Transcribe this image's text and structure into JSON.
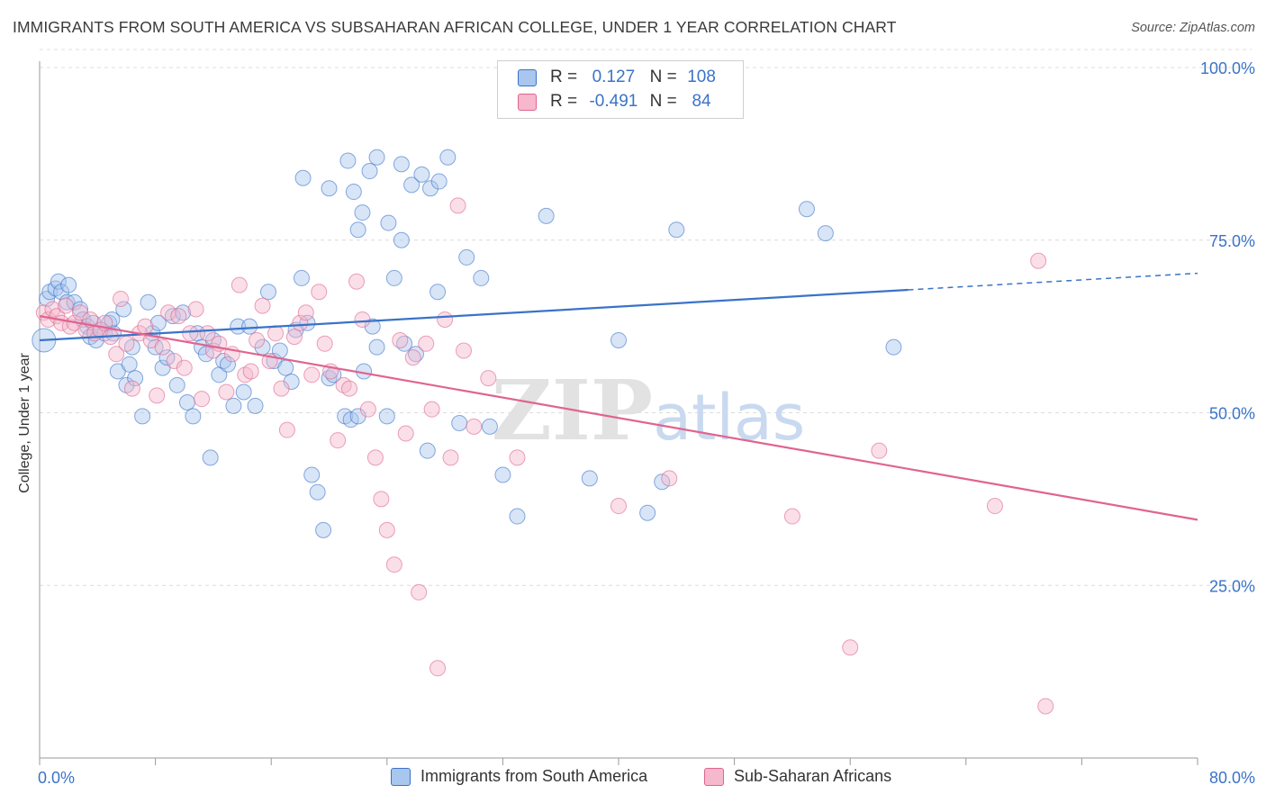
{
  "header": {
    "title": "IMMIGRANTS FROM SOUTH AMERICA VS SUBSAHARAN AFRICAN COLLEGE, UNDER 1 YEAR CORRELATION CHART",
    "source": "Source: ZipAtlas.com"
  },
  "legend": {
    "rows": [
      {
        "r_label": "R =",
        "r_value": "0.127",
        "n_label": "N =",
        "n_value": "108",
        "color": "#a9c6ee"
      },
      {
        "r_label": "R =",
        "r_value": "-0.491",
        "n_label": "N =",
        "n_value": "84",
        "color": "#f5b8cc"
      }
    ]
  },
  "bottom_legend": [
    {
      "label": "Immigrants from South America",
      "color": "#a9c6ee"
    },
    {
      "label": "Sub-Saharan Africans",
      "color": "#f5b8cc"
    }
  ],
  "colors": {
    "blue": "#3a73c9",
    "blue_fill": "#a9c6ee",
    "pink": "#e0648f",
    "pink_fill": "#f5b8cc",
    "tick_label": "#3a73c9",
    "grid": "#dcdcdc"
  },
  "chart_data": {
    "type": "scatter",
    "title": "IMMIGRANTS FROM SOUTH AMERICA VS SUBSAHARAN AFRICAN COLLEGE, UNDER 1 YEAR CORRELATION CHART",
    "xlabel": "",
    "ylabel": "College, Under 1 year",
    "xlim": [
      0,
      80
    ],
    "ylim": [
      0,
      100
    ],
    "x_tick_labels": [
      "0.0%",
      "80.0%"
    ],
    "y_tick_labels": [
      "25.0%",
      "50.0%",
      "75.0%",
      "100.0%"
    ],
    "y_ticks": [
      25,
      50,
      75,
      100
    ],
    "grid": true,
    "legend_position": "top-center",
    "watermark": "ZIPatlas",
    "series": [
      {
        "name": "Immigrants from South America",
        "color": "#3a73c9",
        "trend": {
          "x": [
            0,
            60
          ],
          "y": [
            60.5,
            67.8
          ],
          "dashed_to": [
            80,
            70.2
          ]
        },
        "points": [
          [
            0.3,
            60.5
          ],
          [
            0.5,
            66.5
          ],
          [
            0.7,
            67.5
          ],
          [
            1.1,
            68.0
          ],
          [
            1.3,
            69.0
          ],
          [
            1.5,
            67.5
          ],
          [
            1.9,
            66.0
          ],
          [
            2.0,
            68.5
          ],
          [
            2.4,
            66.0
          ],
          [
            2.8,
            65.0
          ],
          [
            3.0,
            63.5
          ],
          [
            3.3,
            62.5
          ],
          [
            3.5,
            61.0
          ],
          [
            3.7,
            63.0
          ],
          [
            3.9,
            60.5
          ],
          [
            4.2,
            62.0
          ],
          [
            4.5,
            61.5
          ],
          [
            4.8,
            63.0
          ],
          [
            5.0,
            63.5
          ],
          [
            5.1,
            61.5
          ],
          [
            5.4,
            56.0
          ],
          [
            5.8,
            65.0
          ],
          [
            6.0,
            54.0
          ],
          [
            6.2,
            57.0
          ],
          [
            6.4,
            59.5
          ],
          [
            6.6,
            55.0
          ],
          [
            7.1,
            49.5
          ],
          [
            7.5,
            66.0
          ],
          [
            7.8,
            61.5
          ],
          [
            8.0,
            59.5
          ],
          [
            8.2,
            63.0
          ],
          [
            8.5,
            56.5
          ],
          [
            8.8,
            58.0
          ],
          [
            9.2,
            64.0
          ],
          [
            9.5,
            54.0
          ],
          [
            9.9,
            64.5
          ],
          [
            10.2,
            51.5
          ],
          [
            10.6,
            49.5
          ],
          [
            10.9,
            61.5
          ],
          [
            11.2,
            59.5
          ],
          [
            11.5,
            58.5
          ],
          [
            11.8,
            43.5
          ],
          [
            12.0,
            60.5
          ],
          [
            12.4,
            55.5
          ],
          [
            12.7,
            57.5
          ],
          [
            13.0,
            57.0
          ],
          [
            13.4,
            51.0
          ],
          [
            13.7,
            62.5
          ],
          [
            14.1,
            53.0
          ],
          [
            14.5,
            62.5
          ],
          [
            14.9,
            51.0
          ],
          [
            15.4,
            59.5
          ],
          [
            15.8,
            67.5
          ],
          [
            16.2,
            57.5
          ],
          [
            16.6,
            59.0
          ],
          [
            17.0,
            56.5
          ],
          [
            17.4,
            54.5
          ],
          [
            17.7,
            62.0
          ],
          [
            18.1,
            69.5
          ],
          [
            18.5,
            63.0
          ],
          [
            18.8,
            41.0
          ],
          [
            19.2,
            38.5
          ],
          [
            19.6,
            33.0
          ],
          [
            20.0,
            55.0
          ],
          [
            20.3,
            55.5
          ],
          [
            21.1,
            49.5
          ],
          [
            21.5,
            49.0
          ],
          [
            22.0,
            49.5
          ],
          [
            22.4,
            56.0
          ],
          [
            23.0,
            62.5
          ],
          [
            23.3,
            59.5
          ],
          [
            24.0,
            49.5
          ],
          [
            24.5,
            69.5
          ],
          [
            25.2,
            60.0
          ],
          [
            26.0,
            58.5
          ],
          [
            26.8,
            44.5
          ],
          [
            27.5,
            67.5
          ],
          [
            29.0,
            48.5
          ],
          [
            30.5,
            69.5
          ],
          [
            31.1,
            48.0
          ],
          [
            32.0,
            41.0
          ],
          [
            33.0,
            35.0
          ],
          [
            18.2,
            84.0
          ],
          [
            20.0,
            82.5
          ],
          [
            21.3,
            86.5
          ],
          [
            21.7,
            82.0
          ],
          [
            22.0,
            76.5
          ],
          [
            22.3,
            79.0
          ],
          [
            22.8,
            85.0
          ],
          [
            23.3,
            87.0
          ],
          [
            24.1,
            77.5
          ],
          [
            25.0,
            86.0
          ],
          [
            25.7,
            83.0
          ],
          [
            26.4,
            84.5
          ],
          [
            27.0,
            82.5
          ],
          [
            27.6,
            83.5
          ],
          [
            28.2,
            87.0
          ],
          [
            29.5,
            72.5
          ],
          [
            35.0,
            78.5
          ],
          [
            38.0,
            40.5
          ],
          [
            43.0,
            40.0
          ],
          [
            53.0,
            79.5
          ],
          [
            54.3,
            76.0
          ],
          [
            59.0,
            59.5
          ],
          [
            42.0,
            35.5
          ],
          [
            44.0,
            76.5
          ],
          [
            25.0,
            75.0
          ],
          [
            40.0,
            60.5
          ]
        ]
      },
      {
        "name": "Sub-Saharan Africans",
        "color": "#e0648f",
        "trend": {
          "x": [
            0,
            80
          ],
          "y": [
            64.0,
            34.5
          ]
        },
        "points": [
          [
            0.3,
            64.5
          ],
          [
            0.6,
            63.5
          ],
          [
            0.9,
            65.0
          ],
          [
            1.2,
            64.0
          ],
          [
            1.5,
            63.0
          ],
          [
            1.8,
            65.5
          ],
          [
            2.1,
            62.5
          ],
          [
            2.4,
            63.0
          ],
          [
            2.8,
            64.5
          ],
          [
            3.2,
            62.0
          ],
          [
            3.5,
            63.5
          ],
          [
            3.8,
            61.5
          ],
          [
            4.2,
            62.0
          ],
          [
            4.5,
            63.0
          ],
          [
            4.9,
            61.0
          ],
          [
            5.3,
            58.5
          ],
          [
            5.6,
            66.5
          ],
          [
            6.0,
            60.0
          ],
          [
            6.4,
            53.5
          ],
          [
            6.9,
            61.5
          ],
          [
            7.3,
            62.5
          ],
          [
            7.7,
            60.5
          ],
          [
            8.1,
            52.5
          ],
          [
            8.5,
            59.5
          ],
          [
            8.9,
            64.5
          ],
          [
            9.3,
            57.5
          ],
          [
            9.6,
            64.0
          ],
          [
            10.0,
            56.5
          ],
          [
            10.4,
            61.5
          ],
          [
            10.8,
            65.0
          ],
          [
            11.2,
            52.0
          ],
          [
            11.6,
            61.5
          ],
          [
            12.0,
            59.0
          ],
          [
            12.4,
            60.0
          ],
          [
            12.9,
            53.0
          ],
          [
            13.3,
            58.5
          ],
          [
            13.8,
            68.5
          ],
          [
            14.2,
            55.5
          ],
          [
            14.6,
            56.0
          ],
          [
            15.0,
            60.5
          ],
          [
            15.4,
            65.5
          ],
          [
            15.9,
            57.5
          ],
          [
            16.3,
            61.5
          ],
          [
            16.7,
            53.5
          ],
          [
            17.1,
            47.5
          ],
          [
            17.6,
            61.0
          ],
          [
            18.0,
            63.0
          ],
          [
            18.4,
            64.5
          ],
          [
            18.8,
            55.5
          ],
          [
            19.3,
            67.5
          ],
          [
            19.7,
            60.0
          ],
          [
            20.1,
            56.0
          ],
          [
            20.6,
            46.0
          ],
          [
            21.0,
            54.0
          ],
          [
            21.4,
            53.5
          ],
          [
            21.9,
            69.0
          ],
          [
            22.3,
            63.5
          ],
          [
            22.7,
            50.5
          ],
          [
            23.2,
            43.5
          ],
          [
            23.6,
            37.5
          ],
          [
            24.0,
            33.0
          ],
          [
            24.5,
            28.0
          ],
          [
            24.9,
            60.5
          ],
          [
            25.3,
            47.0
          ],
          [
            25.8,
            58.0
          ],
          [
            26.2,
            24.0
          ],
          [
            26.7,
            60.0
          ],
          [
            27.1,
            50.5
          ],
          [
            27.5,
            13.0
          ],
          [
            28.0,
            63.5
          ],
          [
            28.4,
            43.5
          ],
          [
            28.9,
            80.0
          ],
          [
            29.3,
            59.0
          ],
          [
            30.0,
            48.0
          ],
          [
            31.0,
            55.0
          ],
          [
            33.0,
            43.5
          ],
          [
            40.0,
            36.5
          ],
          [
            43.5,
            40.5
          ],
          [
            52.0,
            35.0
          ],
          [
            56.0,
            16.0
          ],
          [
            58.0,
            44.5
          ],
          [
            66.0,
            36.5
          ],
          [
            69.0,
            72.0
          ],
          [
            69.5,
            7.5
          ]
        ]
      }
    ]
  }
}
